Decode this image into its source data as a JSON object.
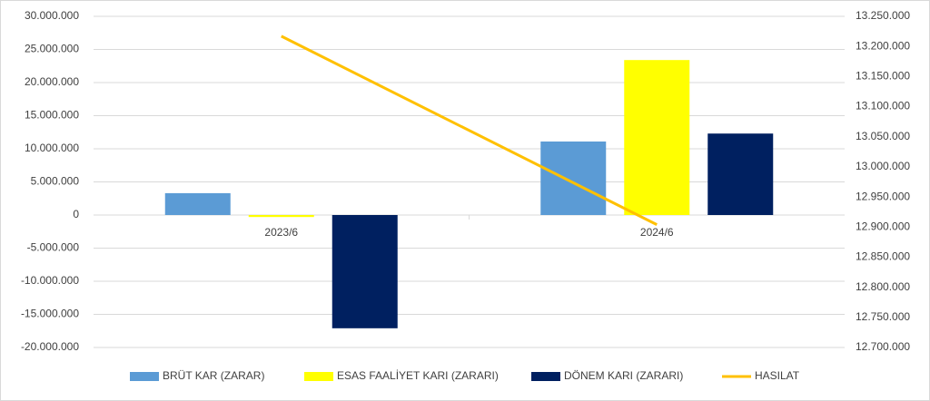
{
  "chart_data": {
    "type": "bar-line",
    "categories": [
      "2023/6",
      "2024/6"
    ],
    "series": [
      {
        "name": "BRÜT KAR (ZARAR)",
        "color": "#5b9bd5",
        "type": "bar",
        "values": [
          3300000,
          11100000
        ]
      },
      {
        "name": "ESAS FAALİYET KARI (ZARARI)",
        "color": "#ffff00",
        "type": "bar",
        "values": [
          -300000,
          23400000
        ]
      },
      {
        "name": "DÖNEM KARI (ZARARI)",
        "color": "#002060",
        "type": "bar",
        "values": [
          -17100000,
          12300000
        ]
      },
      {
        "name": "HASILAT",
        "color": "#ffc000",
        "type": "line",
        "axis": "y2",
        "values": [
          13217000,
          12904000
        ]
      }
    ],
    "ylim": [
      -20000000,
      30000000
    ],
    "yticks": [
      {
        "value": -20000000,
        "label": "-20.000.000"
      },
      {
        "value": -15000000,
        "label": "-15.000.000"
      },
      {
        "value": -10000000,
        "label": "-10.000.000"
      },
      {
        "value": -5000000,
        "label": "-5.000.000"
      },
      0,
      {
        "value": 5000000,
        "label": "5.000.000"
      },
      {
        "value": 10000000,
        "label": "10.000.000"
      },
      {
        "value": 15000000,
        "label": "15.000.000"
      },
      {
        "value": 20000000,
        "label": "20.000.000"
      },
      {
        "value": 25000000,
        "label": "25.000.000"
      },
      {
        "value": 30000000,
        "label": "30.000.000"
      }
    ],
    "y2lim": [
      12700000,
      13250000
    ],
    "y2ticks": [
      {
        "value": 12700000,
        "label": "12.700.000"
      },
      {
        "value": 12750000,
        "label": "12.750.000"
      },
      {
        "value": 12800000,
        "label": "12.800.000"
      },
      {
        "value": 12850000,
        "label": "12.850.000"
      },
      {
        "value": 12900000,
        "label": "12.900.000"
      },
      {
        "value": 12950000,
        "label": "12.950.000"
      },
      {
        "value": 13000000,
        "label": "13.000.000"
      },
      {
        "value": 13050000,
        "label": "13.050.000"
      },
      {
        "value": 13100000,
        "label": "13.100.000"
      },
      {
        "value": 13150000,
        "label": "13.150.000"
      },
      {
        "value": 13200000,
        "label": "13.200.000"
      },
      {
        "value": 13250000,
        "label": "13.250.000"
      }
    ],
    "grid": true
  }
}
